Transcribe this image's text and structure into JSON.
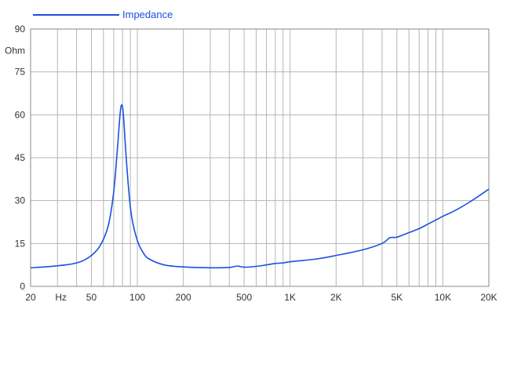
{
  "chart_data": {
    "type": "line",
    "xscale": "log",
    "xlim": [
      20,
      20000
    ],
    "ylim": [
      0,
      90
    ],
    "grid": true,
    "legend_position": "top-left",
    "ylabel": "Ohm",
    "xlabel": "Hz",
    "x_tick_labels": [
      {
        "value": 20,
        "label": "20"
      },
      {
        "value": 50,
        "label": "50"
      },
      {
        "value": 100,
        "label": "100"
      },
      {
        "value": 200,
        "label": "200"
      },
      {
        "value": 500,
        "label": "500"
      },
      {
        "value": 1000,
        "label": "1K"
      },
      {
        "value": 2000,
        "label": "2K"
      },
      {
        "value": 5000,
        "label": "5K"
      },
      {
        "value": 10000,
        "label": "10K"
      },
      {
        "value": 20000,
        "label": "20K"
      }
    ],
    "y_tick_labels": [
      {
        "value": 0,
        "label": "0"
      },
      {
        "value": 15,
        "label": "15"
      },
      {
        "value": 30,
        "label": "30"
      },
      {
        "value": 45,
        "label": "45"
      },
      {
        "value": 60,
        "label": "60"
      },
      {
        "value": 75,
        "label": "75"
      },
      {
        "value": 90,
        "label": "90"
      }
    ],
    "series": [
      {
        "name": "Impedance",
        "color": "#1a50e0",
        "points": [
          [
            20,
            6.5
          ],
          [
            25,
            6.8
          ],
          [
            30,
            7.2
          ],
          [
            35,
            7.6
          ],
          [
            40,
            8.2
          ],
          [
            45,
            9.2
          ],
          [
            50,
            10.8
          ],
          [
            55,
            13.0
          ],
          [
            60,
            16.5
          ],
          [
            65,
            22.0
          ],
          [
            70,
            33.0
          ],
          [
            74,
            48.0
          ],
          [
            77,
            60.0
          ],
          [
            79,
            63.5
          ],
          [
            81,
            60.0
          ],
          [
            84,
            47.0
          ],
          [
            88,
            33.0
          ],
          [
            92,
            24.0
          ],
          [
            100,
            16.0
          ],
          [
            110,
            11.5
          ],
          [
            120,
            9.5
          ],
          [
            150,
            7.5
          ],
          [
            200,
            6.8
          ],
          [
            300,
            6.5
          ],
          [
            400,
            6.6
          ],
          [
            450,
            7.1
          ],
          [
            500,
            6.7
          ],
          [
            600,
            7.0
          ],
          [
            700,
            7.5
          ],
          [
            800,
            8.0
          ],
          [
            900,
            8.2
          ],
          [
            1000,
            8.6
          ],
          [
            1500,
            9.6
          ],
          [
            2000,
            10.8
          ],
          [
            3000,
            12.8
          ],
          [
            4000,
            15.0
          ],
          [
            4500,
            17.0
          ],
          [
            5000,
            17.2
          ],
          [
            6000,
            18.8
          ],
          [
            7000,
            20.2
          ],
          [
            8000,
            21.8
          ],
          [
            9000,
            23.2
          ],
          [
            10000,
            24.5
          ],
          [
            12000,
            26.5
          ],
          [
            15000,
            29.5
          ],
          [
            20000,
            34.0
          ]
        ]
      }
    ]
  }
}
